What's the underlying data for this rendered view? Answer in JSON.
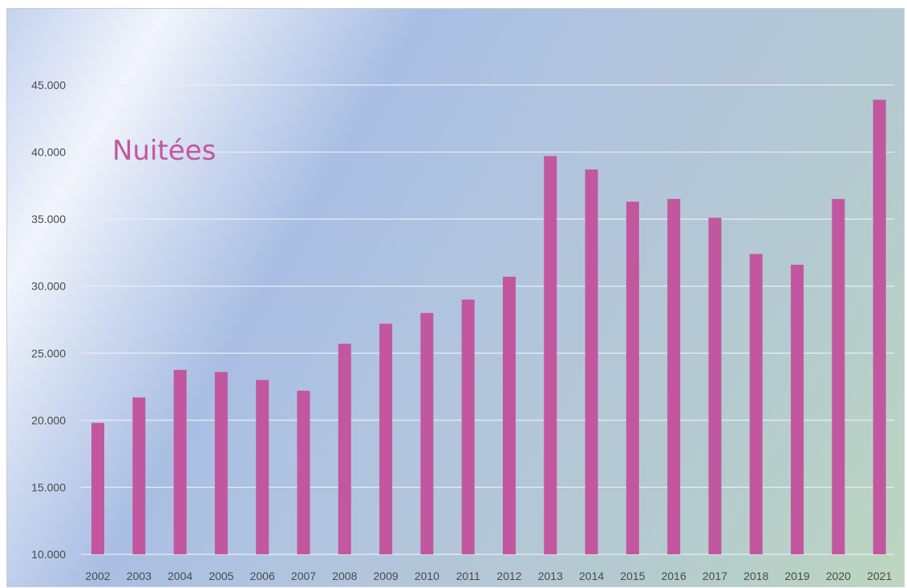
{
  "chart_data": {
    "type": "bar",
    "title": "Nuitées",
    "xlabel": "",
    "ylabel": "",
    "categories": [
      "2002",
      "2003",
      "2004",
      "2005",
      "2006",
      "2007",
      "2008",
      "2009",
      "2010",
      "2011",
      "2012",
      "2013",
      "2014",
      "2015",
      "2016",
      "2017",
      "2018",
      "2019",
      "2020",
      "2021"
    ],
    "values": [
      19800,
      21700,
      23750,
      23600,
      23000,
      22200,
      25700,
      27200,
      28000,
      29000,
      30700,
      39700,
      38700,
      36300,
      36500,
      35100,
      32400,
      31600,
      36500,
      43900
    ],
    "ylim": [
      10000,
      45000
    ],
    "yticks": [
      "10.000",
      "15.000",
      "20.000",
      "25.000",
      "30.000",
      "35.000",
      "40.000",
      "45.000"
    ],
    "ytick_values": [
      10000,
      15000,
      20000,
      25000,
      30000,
      35000,
      40000,
      45000
    ],
    "grid": true,
    "legend": "none",
    "bar_color": "#c2579f",
    "title_color": "#c2579f"
  }
}
